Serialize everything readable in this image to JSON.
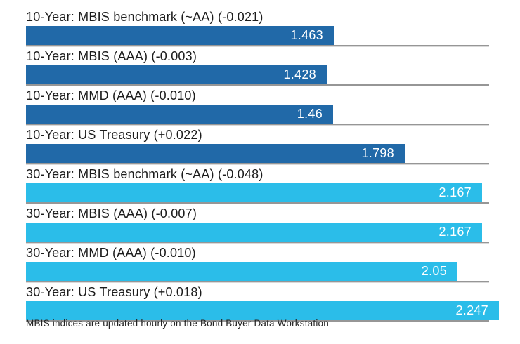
{
  "chart_data": {
    "type": "bar",
    "orientation": "horizontal",
    "title": "",
    "xlabel": "",
    "ylabel": "",
    "xlim": [
      0,
      2.25
    ],
    "grid": false,
    "legend": "none",
    "colors": {
      "ten_year": "#2169a8",
      "thirty_year": "#2bbde9",
      "value_text": "#ffffff",
      "label_text": "#1c1c1c",
      "separator": "#969696"
    },
    "bars": [
      {
        "label": "10-Year: MBIS benchmark (~AA) (-0.021)",
        "value": 1.463,
        "display": "1.463",
        "group": "ten_year"
      },
      {
        "label": "10-Year: MBIS (AAA) (-0.003)",
        "value": 1.428,
        "display": "1.428",
        "group": "ten_year"
      },
      {
        "label": "10-Year: MMD (AAA) (-0.010)",
        "value": 1.46,
        "display": "1.46",
        "group": "ten_year"
      },
      {
        "label": "10-Year: US Treasury (+0.022)",
        "value": 1.798,
        "display": "1.798",
        "group": "ten_year"
      },
      {
        "label": "30-Year: MBIS benchmark (~AA) (-0.048)",
        "value": 2.167,
        "display": "2.167",
        "group": "thirty_year"
      },
      {
        "label": "30-Year: MBIS (AAA) (-0.007)",
        "value": 2.167,
        "display": "2.167",
        "group": "thirty_year"
      },
      {
        "label": "30-Year: MMD (AAA) (-0.010)",
        "value": 2.05,
        "display": "2.05",
        "group": "thirty_year"
      },
      {
        "label": "30-Year: US Treasury (+0.018)",
        "value": 2.247,
        "display": "2.247",
        "group": "thirty_year"
      }
    ],
    "footnote": "MBIS indices are updated hourly on the Bond Buyer Data Workstation"
  }
}
